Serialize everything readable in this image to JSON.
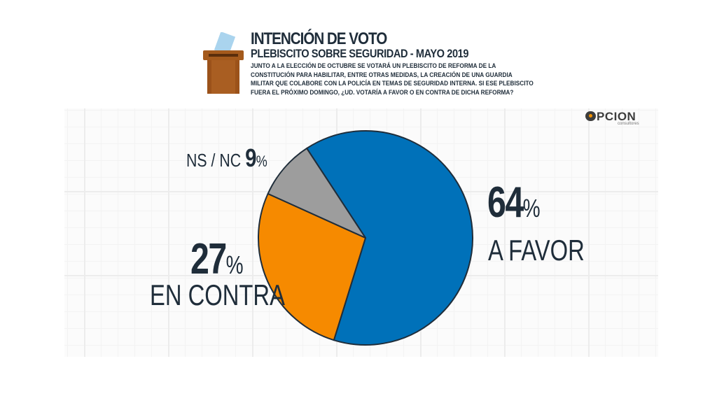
{
  "header": {
    "title": "INTENCIÓN DE VOTO",
    "subtitle": "PLEBISCITO SOBRE SEGURIDAD - MAYO 2019",
    "question": "JUNTO A LA ELECCIÓN DE OCTUBRE SE VOTARÁ UN PLEBISCITO DE REFORMA DE LA CONSTITUCIÓN PARA HABILITAR, ENTRE OTRAS MEDIDAS, LA CREACIÓN DE UNA GUARDIA MILITAR QUE COLABORE CON LA POLICÍA EN TEMAS DE SEGURIDAD INTERNA. SI ESE PLEBISCITO FUERA EL PRÓXIMO DOMINGO, ¿UD. VOTARÍA A FAVOR O EN CONTRA DE DICHA REFORMA?",
    "icon": "ballot-box-icon"
  },
  "logo": {
    "name": "PCION",
    "sub": "consultores"
  },
  "colors": {
    "favor": "#0071b9",
    "contra": "#f68a00",
    "nsnc": "#9d9d9d",
    "text": "#1f2d3a"
  },
  "labels": {
    "favor_value": "64",
    "favor_text": "A FAVOR",
    "contra_value": "27",
    "contra_text": "EN CONTRA",
    "nsnc_text": "NS / NC",
    "nsnc_value": "9",
    "percent_sign": "%"
  },
  "chart_data": {
    "type": "pie",
    "slices": [
      {
        "label": "A FAVOR",
        "value": 64,
        "color": "#0071b9"
      },
      {
        "label": "EN CONTRA",
        "value": 27,
        "color": "#f68a00"
      },
      {
        "label": "NS / NC",
        "value": 9,
        "color": "#9d9d9d"
      }
    ],
    "unit": "%",
    "title": "INTENCIÓN DE VOTO",
    "legend": "none"
  }
}
